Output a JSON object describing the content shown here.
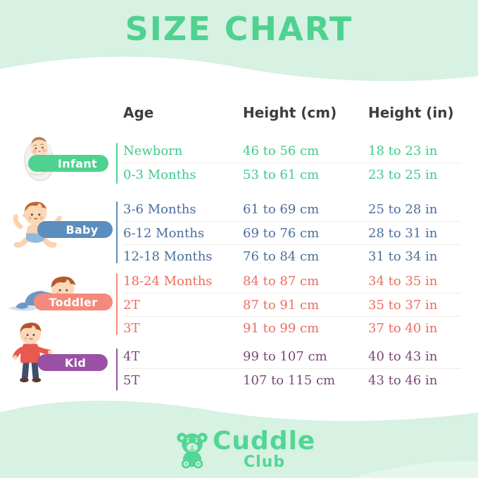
{
  "title": "SIZE CHART",
  "colors": {
    "background_mint": "#d7f1e3",
    "sheet_white": "#ffffff",
    "accent_green": "#4fd290",
    "header_text": "#3d3d40",
    "separator": "#f1ebe8",
    "logo_green": "#52d694"
  },
  "chart_data": {
    "type": "table",
    "title": "SIZE CHART",
    "columns": [
      "Age",
      "Height (cm)",
      "Height (in)"
    ],
    "groups": [
      {
        "label": "Infant",
        "badge_color": "#4ed28f",
        "text_color": "#3fca8b",
        "rows": [
          [
            "Newborn",
            "46 to 56 cm",
            "18 to 23 in"
          ],
          [
            "0-3 Months",
            "53 to 61 cm",
            "23 to 25 in"
          ]
        ]
      },
      {
        "label": "Baby",
        "badge_color": "#5b8dbe",
        "text_color": "#4a6f9d",
        "rows": [
          [
            "3-6 Months",
            "61 to 69 cm",
            "25 to 28 in"
          ],
          [
            "6-12 Months",
            "69 to 76 cm",
            "28 to 31 in"
          ],
          [
            "12-18 Months",
            "76 to 84 cm",
            "31 to 34 in"
          ]
        ]
      },
      {
        "label": "Toddler",
        "badge_color": "#f48a7b",
        "text_color": "#ec6d5f",
        "rows": [
          [
            "18-24 Months",
            "84 to 87 cm",
            "34 to 35 in"
          ],
          [
            "2T",
            "87 to 91 cm",
            "35 to 37 in"
          ],
          [
            "3T",
            "91 to 99 cm",
            "37 to 40 in"
          ]
        ]
      },
      {
        "label": "Kid",
        "badge_color": "#9b51a5",
        "text_color": "#7c4876",
        "rows": [
          [
            "4T",
            "99 to 107 cm",
            "40 to 43 in"
          ],
          [
            "5T",
            "107 to 115 cm",
            "43 to 46 in"
          ]
        ]
      }
    ]
  },
  "footer": {
    "brand": "Cuddle",
    "brand_sub": "Club"
  }
}
